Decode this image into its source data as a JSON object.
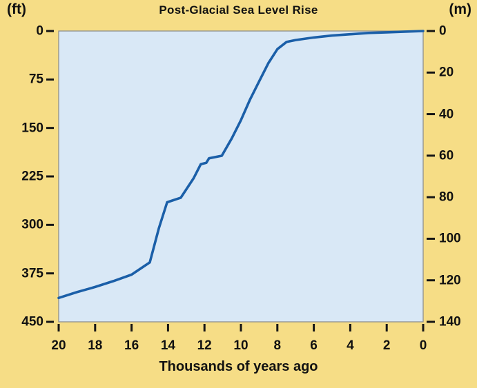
{
  "chart_data": {
    "type": "line",
    "title": "Post-Glacial Sea Level Rise",
    "left_axis_unit": "(ft)",
    "right_axis_unit": "(m)",
    "xlabel": "Thousands of years ago",
    "x_axis": {
      "label": "Thousands of years ago",
      "min": 0,
      "max": 20,
      "reversed": true,
      "tick_labels": [
        20,
        18,
        16,
        14,
        12,
        10,
        8,
        6,
        4,
        2,
        0
      ]
    },
    "y_axis_left": {
      "unit": "ft",
      "header": "(ft)",
      "min": 0,
      "max": 450,
      "increases": "downward",
      "tick_labels": [
        0,
        75,
        150,
        225,
        300,
        375,
        450
      ]
    },
    "y_axis_right": {
      "unit": "m",
      "header": "(m)",
      "min": 0,
      "max": 140,
      "increases": "downward",
      "tick_labels": [
        0,
        20,
        40,
        60,
        80,
        100,
        120,
        140
      ]
    },
    "series": [
      {
        "name": "sea-level-depth-below-present-ft",
        "points": [
          [
            20,
            413
          ],
          [
            19,
            404
          ],
          [
            18,
            396
          ],
          [
            17,
            387
          ],
          [
            16,
            377
          ],
          [
            15,
            358
          ],
          [
            14.5,
            305
          ],
          [
            14.05,
            265
          ],
          [
            13.3,
            258
          ],
          [
            12.6,
            228
          ],
          [
            12.2,
            206
          ],
          [
            11.9,
            204
          ],
          [
            11.75,
            197
          ],
          [
            11.05,
            193
          ],
          [
            10.5,
            166
          ],
          [
            10,
            138
          ],
          [
            9.5,
            106
          ],
          [
            9,
            78
          ],
          [
            8.5,
            50
          ],
          [
            8,
            28
          ],
          [
            7.5,
            17
          ],
          [
            7,
            14
          ],
          [
            6,
            10
          ],
          [
            5,
            7
          ],
          [
            4,
            5
          ],
          [
            3,
            3
          ],
          [
            2,
            2
          ],
          [
            1,
            1
          ],
          [
            0,
            0
          ]
        ]
      }
    ],
    "colors": {
      "page_bg": "#f6dd86",
      "plot_bg": "#d9e8f6",
      "line": "#1b5fa8",
      "text": "#151515",
      "frame": "#8e8e8e"
    }
  }
}
